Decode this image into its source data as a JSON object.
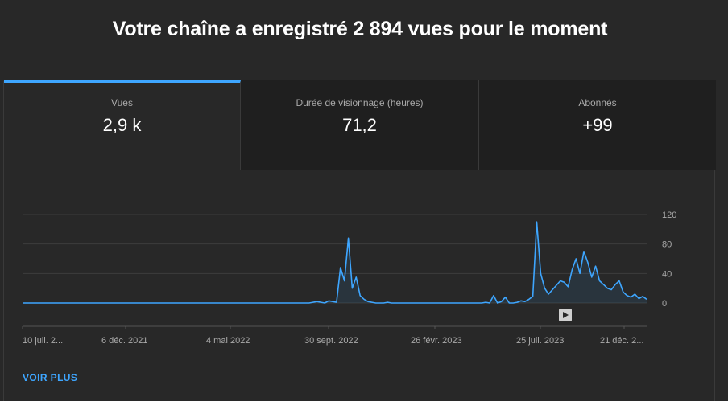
{
  "headline": "Votre chaîne a enregistré 2 894 vues pour le moment",
  "tabs": [
    {
      "label": "Vues",
      "value": "2,9 k",
      "active": true
    },
    {
      "label": "Durée de visionnage (heures)",
      "value": "71,2",
      "active": false
    },
    {
      "label": "Abonnés",
      "value": "+99",
      "active": false
    }
  ],
  "chart_data": {
    "type": "line",
    "y_ticks": [
      0,
      40,
      80,
      120
    ],
    "ylim": [
      0,
      120
    ],
    "x_tick_labels": [
      "10 juil. 2...",
      "6 déc. 2021",
      "4 mai 2022",
      "30 sept. 2022",
      "26 févr. 2023",
      "25 juil. 2023",
      "21 déc. 2..."
    ],
    "series": [
      {
        "values": [
          0,
          0,
          0,
          0,
          0,
          0,
          0,
          0,
          0,
          0,
          0,
          0,
          0,
          0,
          0,
          0,
          0,
          0,
          0,
          0,
          0,
          0,
          0,
          0,
          0,
          0,
          0,
          0,
          0,
          0,
          0,
          0,
          0,
          0,
          0,
          0,
          0,
          0,
          0,
          0,
          0,
          0,
          0,
          0,
          0,
          0,
          0,
          0,
          0,
          0,
          0,
          0,
          0,
          0,
          0,
          0,
          0,
          0,
          0,
          0,
          0,
          0,
          0,
          0,
          0,
          0,
          0,
          0,
          0,
          0,
          0,
          0,
          0,
          0,
          1,
          2,
          1,
          0,
          3,
          2,
          1,
          48,
          30,
          88,
          20,
          35,
          10,
          5,
          2,
          1,
          0,
          0,
          0,
          1,
          0,
          0,
          0,
          0,
          0,
          0,
          0,
          0,
          0,
          0,
          0,
          0,
          0,
          0,
          0,
          0,
          0,
          0,
          0,
          0,
          0,
          0,
          0,
          0,
          1,
          0,
          10,
          0,
          2,
          8,
          0,
          0,
          1,
          3,
          2,
          5,
          9,
          110,
          40,
          20,
          12,
          18,
          24,
          30,
          28,
          22,
          45,
          60,
          40,
          70,
          55,
          35,
          50,
          30,
          25,
          20,
          18,
          25,
          30,
          15,
          10,
          8,
          12,
          6,
          9,
          5
        ]
      }
    ],
    "line_color": "#3ea6ff",
    "grid": true
  },
  "play_icon": "play-icon",
  "voir_plus": "VOIR PLUS"
}
